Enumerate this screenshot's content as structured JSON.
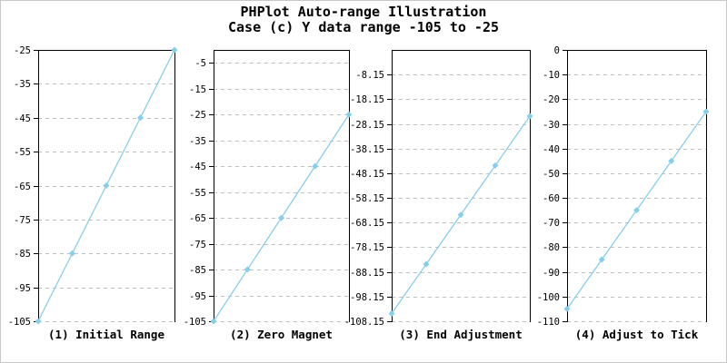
{
  "title": "PHPlot Auto-range Illustration",
  "subtitle": "Case (c) Y data range -105 to -25",
  "colors": {
    "line": "#87CEEB",
    "marker": "#87CEEB",
    "grid": "#c0c0c0",
    "axis": "#000000",
    "text": "#000000",
    "image_border": "#c8c8c8",
    "background": "#ffffff"
  },
  "chart_data": [
    {
      "type": "line",
      "title": "(1) Initial Range",
      "x": [
        0,
        1,
        2,
        3,
        4
      ],
      "values": [
        -105,
        -85,
        -65,
        -45,
        -25
      ],
      "ylim": [
        -105,
        -25
      ],
      "yticks": [
        "-25",
        "-35",
        "-45",
        "-55",
        "-65",
        "-75",
        "-85",
        "-95",
        "-105"
      ],
      "grid": "horizontal-dashed",
      "legend_position": "none"
    },
    {
      "type": "line",
      "title": "(2) Zero Magnet",
      "x": [
        0,
        1,
        2,
        3,
        4
      ],
      "values": [
        -105,
        -85,
        -65,
        -45,
        -25
      ],
      "ylim": [
        -105,
        0
      ],
      "yticks": [
        "-5",
        "-15",
        "-25",
        "-35",
        "-45",
        "-55",
        "-65",
        "-75",
        "-85",
        "-95",
        "-105"
      ],
      "grid": "horizontal-dashed",
      "legend_position": "none"
    },
    {
      "type": "line",
      "title": "(3) End Adjustment",
      "x": [
        0,
        1,
        2,
        3,
        4
      ],
      "values": [
        -105,
        -85,
        -65,
        -45,
        -25
      ],
      "ylim": [
        -108.15,
        1.85
      ],
      "yticks": [
        "-8.15",
        "-18.15",
        "-28.15",
        "-38.15",
        "-48.15",
        "-58.15",
        "-68.15",
        "-78.15",
        "-88.15",
        "-98.15",
        "-108.15"
      ],
      "grid": "horizontal-dashed",
      "legend_position": "none"
    },
    {
      "type": "line",
      "title": "(4) Adjust to Tick",
      "x": [
        0,
        1,
        2,
        3,
        4
      ],
      "values": [
        -105,
        -85,
        -65,
        -45,
        -25
      ],
      "ylim": [
        -110,
        0
      ],
      "yticks": [
        "0",
        "-10",
        "-20",
        "-30",
        "-40",
        "-50",
        "-60",
        "-70",
        "-80",
        "-90",
        "-100",
        "-110"
      ],
      "grid": "horizontal-dashed",
      "legend_position": "none"
    }
  ]
}
